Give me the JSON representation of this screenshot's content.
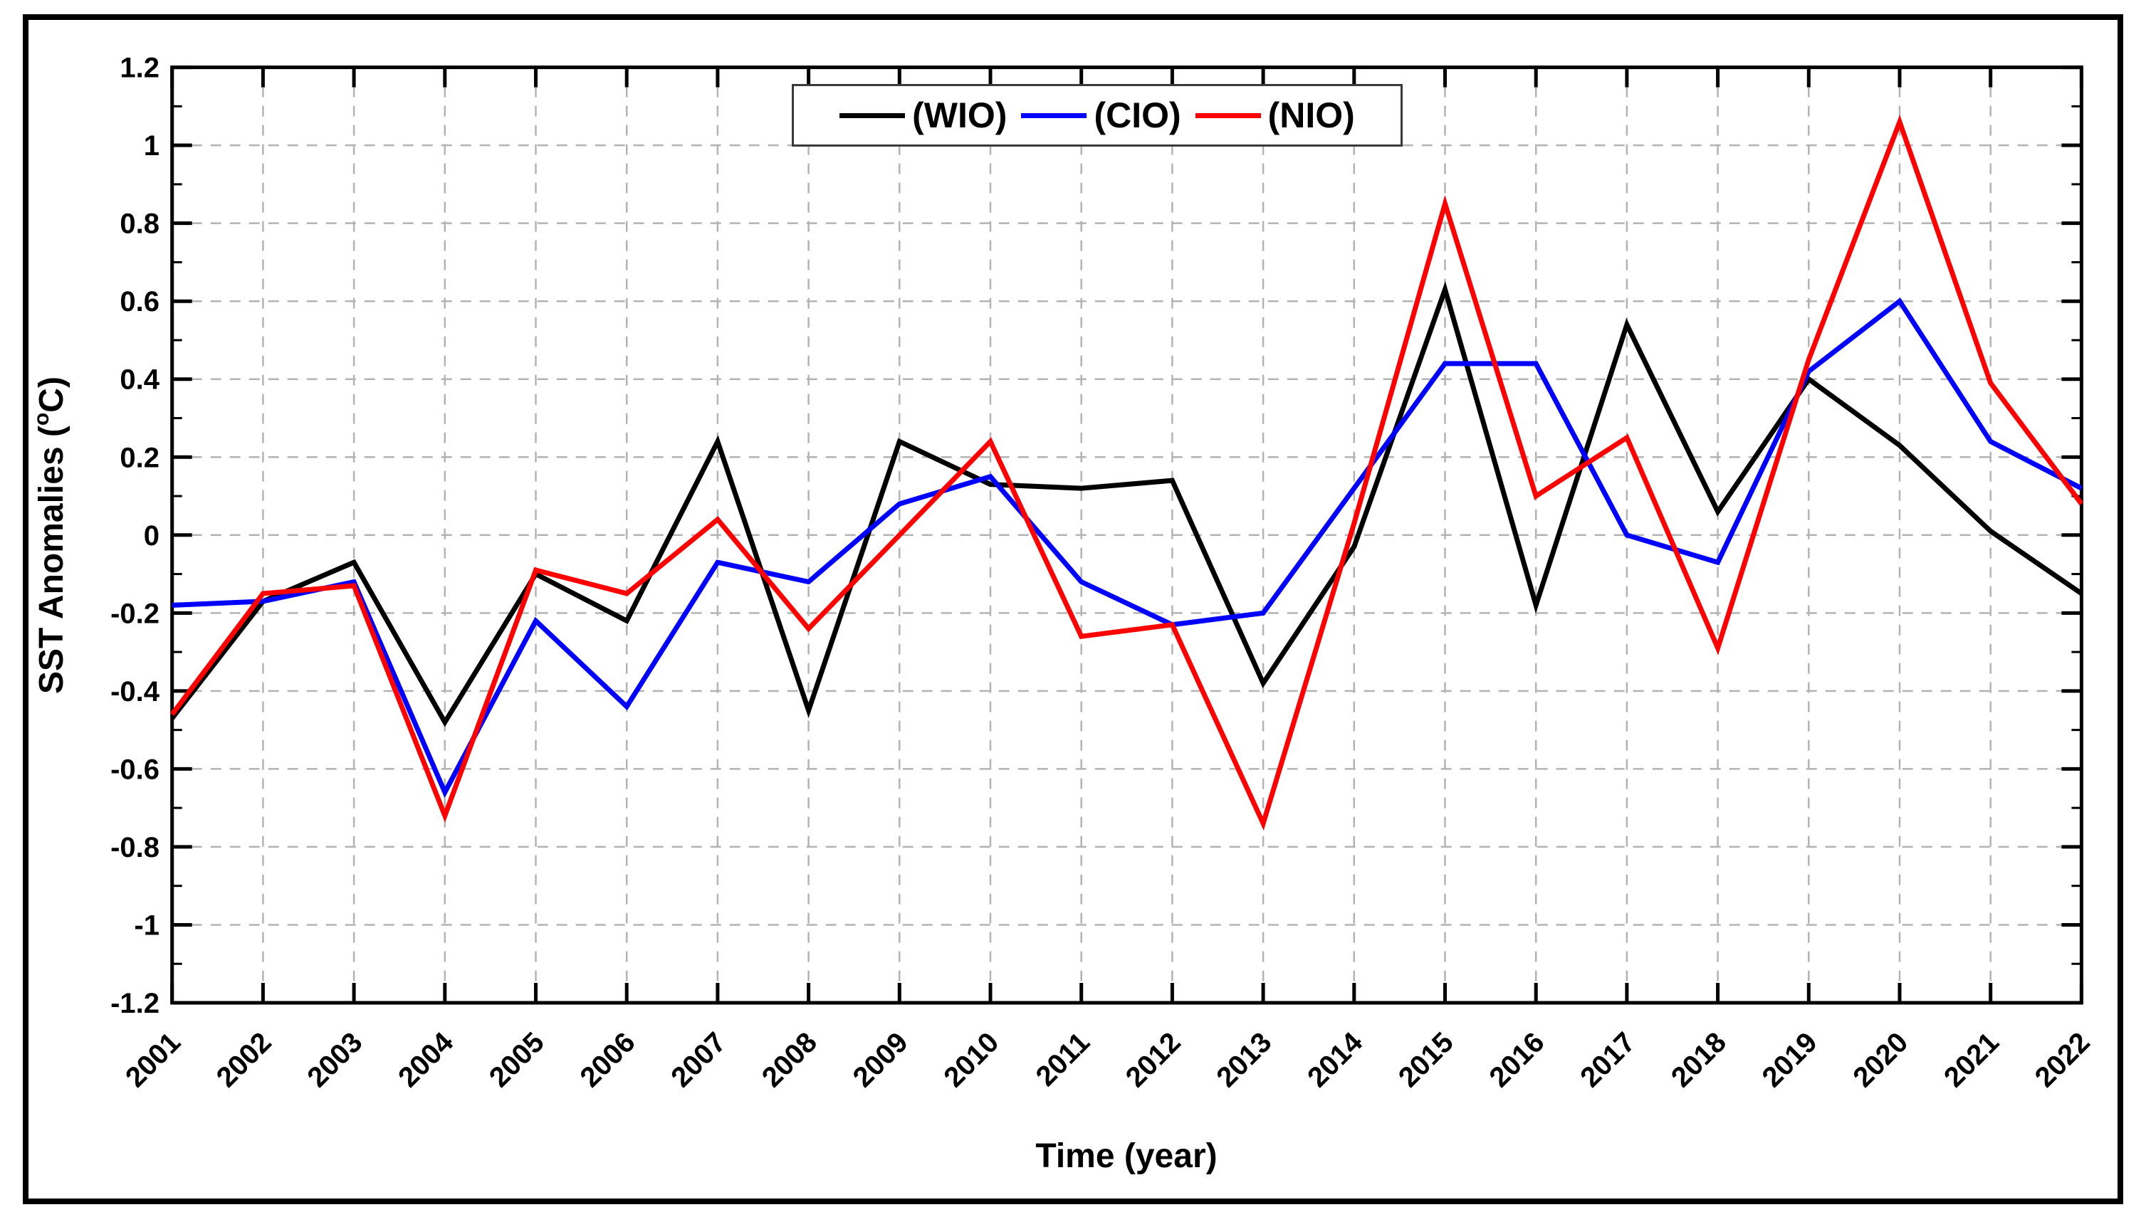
{
  "figure": {
    "background": "#ffffff",
    "border_color": "#000000"
  },
  "chart_data": {
    "type": "line",
    "title": "",
    "xlabel": "Time (year)",
    "ylabel": "SST Anomalies (°C)",
    "ylabel_parts": {
      "pre": "SST Anomalies (",
      "sup": "o",
      "post": "C)"
    },
    "categories": [
      2001,
      2002,
      2003,
      2004,
      2005,
      2006,
      2007,
      2008,
      2009,
      2010,
      2011,
      2012,
      2013,
      2014,
      2015,
      2016,
      2017,
      2018,
      2019,
      2020,
      2021,
      2022
    ],
    "series": [
      {
        "name": "(WIO)",
        "color": "#000000",
        "values": [
          -0.47,
          -0.17,
          -0.07,
          -0.48,
          -0.1,
          -0.22,
          0.24,
          -0.45,
          0.24,
          0.13,
          0.12,
          0.14,
          -0.38,
          -0.03,
          0.63,
          -0.18,
          0.54,
          0.06,
          0.4,
          0.23,
          0.01,
          -0.15
        ]
      },
      {
        "name": "(CIO)",
        "color": "#0000ff",
        "values": [
          -0.18,
          -0.17,
          -0.12,
          -0.66,
          -0.22,
          -0.44,
          -0.07,
          -0.12,
          0.08,
          0.15,
          -0.12,
          -0.23,
          -0.2,
          0.12,
          0.44,
          0.44,
          0.0,
          -0.07,
          0.42,
          0.6,
          0.24,
          0.12
        ]
      },
      {
        "name": "(NIO)",
        "color": "#ff0000",
        "values": [
          -0.46,
          -0.15,
          -0.13,
          -0.72,
          -0.09,
          -0.15,
          0.04,
          -0.24,
          0.0,
          0.24,
          -0.26,
          -0.23,
          -0.74,
          0.03,
          0.85,
          0.1,
          0.25,
          -0.29,
          0.45,
          1.06,
          0.39,
          0.08
        ]
      }
    ],
    "ylim": [
      -1.2,
      1.2
    ],
    "ytick_step": 0.2,
    "y_minor_step": 0.1,
    "grid": "dashed, both axes",
    "grid_color": "#b3b3b3",
    "legend_position": "top-center"
  }
}
